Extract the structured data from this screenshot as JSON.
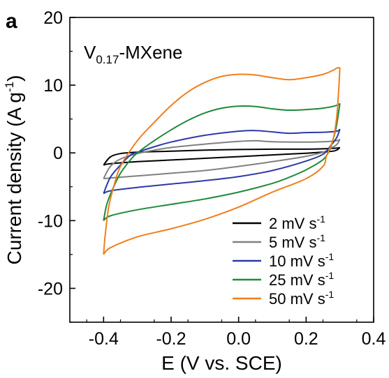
{
  "panel_letter": "a",
  "chart_data": {
    "type": "line",
    "title": "",
    "annotation": {
      "main": "V",
      "subscript": "0.17",
      "suffix": "-MXene"
    },
    "xlabel": "E (V vs. SCE)",
    "ylabel": {
      "main": "Current density (A g",
      "superscript": "-1",
      "close": ")"
    },
    "xlim": [
      -0.5,
      0.4
    ],
    "ylim": [
      -25,
      20
    ],
    "x_ticks": [
      -0.4,
      -0.2,
      0.0,
      0.2,
      0.4
    ],
    "x_tick_labels": [
      "-0.4",
      "-0.2",
      "0.0",
      "0.2",
      "0.4"
    ],
    "y_ticks": [
      20,
      10,
      0,
      -10,
      -20
    ],
    "y_tick_labels": [
      "20",
      "10",
      "0",
      "-10",
      "-20"
    ],
    "grid": false,
    "legend_position": "bottom-right",
    "series": [
      {
        "name": "2 mV s",
        "unit_sup": "-1",
        "color": "#000000",
        "upper": [
          [
            -0.4,
            -1.8
          ],
          [
            -0.38,
            -0.6
          ],
          [
            -0.35,
            -0.1
          ],
          [
            -0.3,
            0.1
          ],
          [
            -0.2,
            0.25
          ],
          [
            -0.1,
            0.4
          ],
          [
            0.0,
            0.5
          ],
          [
            0.1,
            0.55
          ],
          [
            0.2,
            0.55
          ],
          [
            0.25,
            0.6
          ],
          [
            0.29,
            0.7
          ],
          [
            0.3,
            0.8
          ]
        ],
        "lower": [
          [
            0.3,
            0.8
          ],
          [
            0.29,
            0.4
          ],
          [
            0.27,
            0.2
          ],
          [
            0.2,
            -0.05
          ],
          [
            0.1,
            -0.3
          ],
          [
            0.0,
            -0.55
          ],
          [
            -0.1,
            -0.8
          ],
          [
            -0.2,
            -1.05
          ],
          [
            -0.3,
            -1.3
          ],
          [
            -0.38,
            -1.6
          ],
          [
            -0.4,
            -1.8
          ]
        ]
      },
      {
        "name": "5 mV s",
        "unit_sup": "-1",
        "color": "#808080",
        "upper": [
          [
            -0.4,
            -3.8
          ],
          [
            -0.38,
            -2.0
          ],
          [
            -0.35,
            -0.9
          ],
          [
            -0.3,
            -0.1
          ],
          [
            -0.25,
            0.4
          ],
          [
            -0.2,
            0.8
          ],
          [
            -0.1,
            1.3
          ],
          [
            0.0,
            1.7
          ],
          [
            0.05,
            1.8
          ],
          [
            0.1,
            1.65
          ],
          [
            0.2,
            1.6
          ],
          [
            0.25,
            1.65
          ],
          [
            0.29,
            1.8
          ],
          [
            0.3,
            2.0
          ]
        ],
        "lower": [
          [
            0.3,
            2.0
          ],
          [
            0.29,
            1.2
          ],
          [
            0.27,
            0.6
          ],
          [
            0.25,
            0.1
          ],
          [
            0.2,
            -0.5
          ],
          [
            0.1,
            -1.3
          ],
          [
            0.0,
            -2.0
          ],
          [
            -0.1,
            -2.6
          ],
          [
            -0.2,
            -3.0
          ],
          [
            -0.3,
            -3.4
          ],
          [
            -0.38,
            -3.7
          ],
          [
            -0.4,
            -3.8
          ]
        ]
      },
      {
        "name": "10 mV s",
        "unit_sup": "-1",
        "color": "#2b3aa6",
        "upper": [
          [
            -0.4,
            -6.0
          ],
          [
            -0.38,
            -3.6
          ],
          [
            -0.35,
            -1.8
          ],
          [
            -0.32,
            -0.3
          ],
          [
            -0.3,
            0.1
          ],
          [
            -0.25,
            0.9
          ],
          [
            -0.2,
            1.6
          ],
          [
            -0.1,
            2.6
          ],
          [
            0.0,
            3.2
          ],
          [
            0.05,
            3.3
          ],
          [
            0.1,
            3.1
          ],
          [
            0.15,
            2.9
          ],
          [
            0.2,
            3.0
          ],
          [
            0.25,
            3.05
          ],
          [
            0.29,
            3.2
          ],
          [
            0.3,
            3.5
          ]
        ],
        "lower": [
          [
            0.3,
            3.5
          ],
          [
            0.29,
            2.2
          ],
          [
            0.27,
            0.9
          ],
          [
            0.25,
            -0.2
          ],
          [
            0.2,
            -1.2
          ],
          [
            0.1,
            -2.6
          ],
          [
            0.0,
            -3.5
          ],
          [
            -0.1,
            -4.1
          ],
          [
            -0.2,
            -4.6
          ],
          [
            -0.3,
            -5.1
          ],
          [
            -0.38,
            -5.6
          ],
          [
            -0.4,
            -6.0
          ]
        ]
      },
      {
        "name": "25 mV s",
        "unit_sup": "-1",
        "color": "#1e8a3a",
        "upper": [
          [
            -0.4,
            -10.0
          ],
          [
            -0.39,
            -7.5
          ],
          [
            -0.37,
            -5.0
          ],
          [
            -0.35,
            -3.0
          ],
          [
            -0.32,
            -1.0
          ],
          [
            -0.3,
            0.0
          ],
          [
            -0.25,
            1.8
          ],
          [
            -0.2,
            3.4
          ],
          [
            -0.15,
            4.8
          ],
          [
            -0.1,
            5.9
          ],
          [
            -0.05,
            6.6
          ],
          [
            0.0,
            6.9
          ],
          [
            0.05,
            6.85
          ],
          [
            0.1,
            6.5
          ],
          [
            0.15,
            6.3
          ],
          [
            0.2,
            6.4
          ],
          [
            0.25,
            6.6
          ],
          [
            0.29,
            7.0
          ],
          [
            0.3,
            7.3
          ]
        ],
        "lower": [
          [
            0.3,
            7.3
          ],
          [
            0.29,
            4.0
          ],
          [
            0.28,
            2.0
          ],
          [
            0.27,
            0.5
          ],
          [
            0.25,
            -1.0
          ],
          [
            0.2,
            -2.5
          ],
          [
            0.15,
            -3.6
          ],
          [
            0.1,
            -4.5
          ],
          [
            0.0,
            -5.8
          ],
          [
            -0.1,
            -6.8
          ],
          [
            -0.2,
            -7.6
          ],
          [
            -0.3,
            -8.4
          ],
          [
            -0.38,
            -9.3
          ],
          [
            -0.4,
            -10.0
          ]
        ]
      },
      {
        "name": "50 mV s",
        "unit_sup": "-1",
        "color": "#f07f1a",
        "upper": [
          [
            -0.4,
            -15.0
          ],
          [
            -0.395,
            -12.0
          ],
          [
            -0.385,
            -8.0
          ],
          [
            -0.37,
            -5.0
          ],
          [
            -0.35,
            -2.0
          ],
          [
            -0.3,
            1.8
          ],
          [
            -0.25,
            4.5
          ],
          [
            -0.2,
            7.0
          ],
          [
            -0.15,
            9.0
          ],
          [
            -0.1,
            10.4
          ],
          [
            -0.05,
            11.3
          ],
          [
            0.0,
            11.6
          ],
          [
            0.05,
            11.5
          ],
          [
            0.1,
            11.1
          ],
          [
            0.15,
            10.8
          ],
          [
            0.2,
            11.1
          ],
          [
            0.25,
            11.6
          ],
          [
            0.28,
            12.2
          ],
          [
            0.29,
            12.5
          ],
          [
            0.3,
            12.6
          ]
        ],
        "lower": [
          [
            0.3,
            12.6
          ],
          [
            0.295,
            8.0
          ],
          [
            0.29,
            5.0
          ],
          [
            0.28,
            2.0
          ],
          [
            0.26,
            -0.5
          ],
          [
            0.25,
            -2.0
          ],
          [
            0.2,
            -3.8
          ],
          [
            0.1,
            -5.8
          ],
          [
            0.0,
            -8.0
          ],
          [
            -0.1,
            -9.8
          ],
          [
            -0.2,
            -11.2
          ],
          [
            -0.3,
            -12.4
          ],
          [
            -0.38,
            -14.0
          ],
          [
            -0.4,
            -15.0
          ]
        ]
      }
    ]
  }
}
